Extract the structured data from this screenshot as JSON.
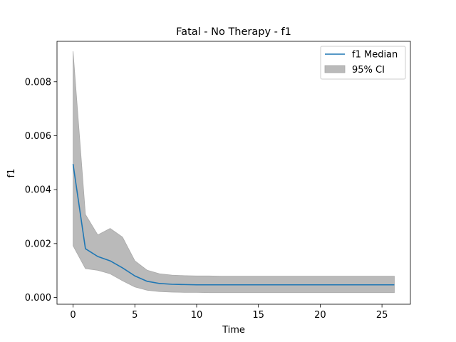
{
  "chart_data": {
    "type": "line",
    "title": "Fatal - No Therapy - f1",
    "xlabel": "Time",
    "ylabel": "f1",
    "xlim": [
      -1.3,
      27.3
    ],
    "ylim": [
      -0.00025,
      0.0095
    ],
    "x_ticks": [
      0,
      5,
      10,
      15,
      20,
      25
    ],
    "x_tick_labels": [
      "0",
      "5",
      "10",
      "15",
      "20",
      "25"
    ],
    "y_ticks": [
      0,
      0.002,
      0.004,
      0.006,
      0.008
    ],
    "y_tick_labels": [
      "0.000",
      "0.002",
      "0.004",
      "0.006",
      "0.008"
    ],
    "grid": false,
    "legend_position": "top-right",
    "x": [
      0,
      1,
      2,
      3,
      4,
      5,
      6,
      7,
      8,
      9,
      10,
      11,
      12,
      13,
      14,
      15,
      16,
      17,
      18,
      19,
      20,
      21,
      22,
      23,
      24,
      25,
      26
    ],
    "series": [
      {
        "name": "f1 Median",
        "type": "line",
        "color": "#1f77b4",
        "values": [
          0.00495,
          0.00181,
          0.00152,
          0.00136,
          0.0011,
          0.0008,
          0.0006,
          0.00052,
          0.00049,
          0.00048,
          0.00047,
          0.00047,
          0.00047,
          0.00047,
          0.00047,
          0.00047,
          0.00047,
          0.00047,
          0.00047,
          0.00047,
          0.00047,
          0.00047,
          0.00047,
          0.00047,
          0.00047,
          0.00047,
          0.00047
        ]
      },
      {
        "name": "95% CI",
        "type": "band",
        "color": "#a9a9a9",
        "lower": [
          0.00192,
          0.00107,
          0.00101,
          0.00088,
          0.00062,
          0.00039,
          0.00027,
          0.00022,
          0.0002,
          0.00019,
          0.00019,
          0.00018,
          0.00018,
          0.00018,
          0.00018,
          0.00018,
          0.00018,
          0.00018,
          0.00018,
          0.00018,
          0.00018,
          0.00018,
          0.00018,
          0.00018,
          0.00018,
          0.00018,
          0.00018
        ],
        "upper": [
          0.00913,
          0.00308,
          0.00232,
          0.00256,
          0.00224,
          0.00136,
          0.00101,
          0.00088,
          0.00083,
          0.00081,
          0.0008,
          0.0008,
          0.00079,
          0.00079,
          0.00079,
          0.00079,
          0.00079,
          0.00079,
          0.00079,
          0.00079,
          0.00079,
          0.00079,
          0.00079,
          0.00079,
          0.00079,
          0.00079,
          0.00079
        ]
      }
    ]
  }
}
